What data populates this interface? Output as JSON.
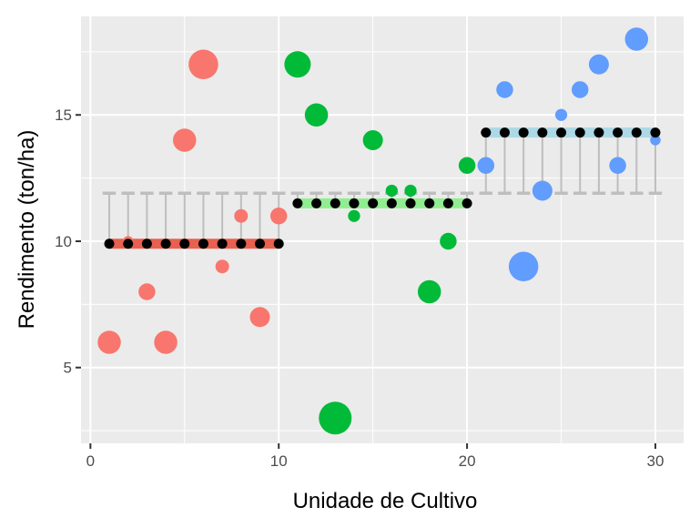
{
  "chart_data": {
    "type": "scatter",
    "title": "",
    "xlabel": "Unidade de Cultivo",
    "ylabel": "Rendimento (ton/ha)",
    "xlim": [
      -0.5,
      31.5
    ],
    "ylim": [
      2.0,
      18.9
    ],
    "x_ticks": [
      0,
      10,
      20,
      30
    ],
    "y_ticks": [
      5,
      10,
      15
    ],
    "x_tick_labels": [
      "0",
      "10",
      "20",
      "30"
    ],
    "y_tick_labels": [
      "5",
      "10",
      "15"
    ],
    "grid": true,
    "legend": "none",
    "colors": {
      "panel_bg": "#ebebeb",
      "grid": "#ffffff",
      "group1": "#f8766d",
      "group2": "#00ba38",
      "group3": "#619cff",
      "group1_band": "#e8604f",
      "group2_band": "#90ee90",
      "group3_band": "#add8e6",
      "overall_mean_line": "#bebebe",
      "fitted_point": "#000000"
    },
    "overall_mean": 11.9,
    "groups": [
      {
        "x_range": [
          1,
          10
        ],
        "mean": 9.9
      },
      {
        "x_range": [
          11,
          20
        ],
        "mean": 11.5
      },
      {
        "x_range": [
          21,
          30
        ],
        "mean": 14.3
      }
    ],
    "points": [
      {
        "x": 1,
        "y": 6,
        "group": 1,
        "size": 5
      },
      {
        "x": 2,
        "y": 10,
        "group": 1,
        "size": 1
      },
      {
        "x": 3,
        "y": 8,
        "group": 1,
        "size": 3
      },
      {
        "x": 4,
        "y": 6,
        "group": 1,
        "size": 5
      },
      {
        "x": 5,
        "y": 14,
        "group": 1,
        "size": 5
      },
      {
        "x": 6,
        "y": 17,
        "group": 1,
        "size": 7
      },
      {
        "x": 7,
        "y": 9,
        "group": 1,
        "size": 2
      },
      {
        "x": 8,
        "y": 11,
        "group": 1,
        "size": 2
      },
      {
        "x": 9,
        "y": 7,
        "group": 1,
        "size": 4
      },
      {
        "x": 10,
        "y": 11,
        "group": 1,
        "size": 3
      },
      {
        "x": 11,
        "y": 17,
        "group": 2,
        "size": 6
      },
      {
        "x": 12,
        "y": 15,
        "group": 2,
        "size": 5
      },
      {
        "x": 13,
        "y": 3,
        "group": 2,
        "size": 8
      },
      {
        "x": 14,
        "y": 11,
        "group": 2,
        "size": 1.5
      },
      {
        "x": 15,
        "y": 14,
        "group": 2,
        "size": 4
      },
      {
        "x": 16,
        "y": 12,
        "group": 2,
        "size": 1.5
      },
      {
        "x": 17,
        "y": 12,
        "group": 2,
        "size": 1.5
      },
      {
        "x": 18,
        "y": 8,
        "group": 2,
        "size": 5
      },
      {
        "x": 19,
        "y": 10,
        "group": 2,
        "size": 3
      },
      {
        "x": 20,
        "y": 13,
        "group": 2,
        "size": 3
      },
      {
        "x": 21,
        "y": 13,
        "group": 3,
        "size": 3
      },
      {
        "x": 22,
        "y": 16,
        "group": 3,
        "size": 3
      },
      {
        "x": 23,
        "y": 9,
        "group": 3,
        "size": 7
      },
      {
        "x": 24,
        "y": 12,
        "group": 3,
        "size": 4
      },
      {
        "x": 25,
        "y": 15,
        "group": 3,
        "size": 1.5
      },
      {
        "x": 26,
        "y": 16,
        "group": 3,
        "size": 3
      },
      {
        "x": 27,
        "y": 17,
        "group": 3,
        "size": 4
      },
      {
        "x": 28,
        "y": 13,
        "group": 3,
        "size": 3
      },
      {
        "x": 29,
        "y": 18,
        "group": 3,
        "size": 5
      },
      {
        "x": 30,
        "y": 14,
        "group": 3,
        "size": 1
      }
    ]
  }
}
